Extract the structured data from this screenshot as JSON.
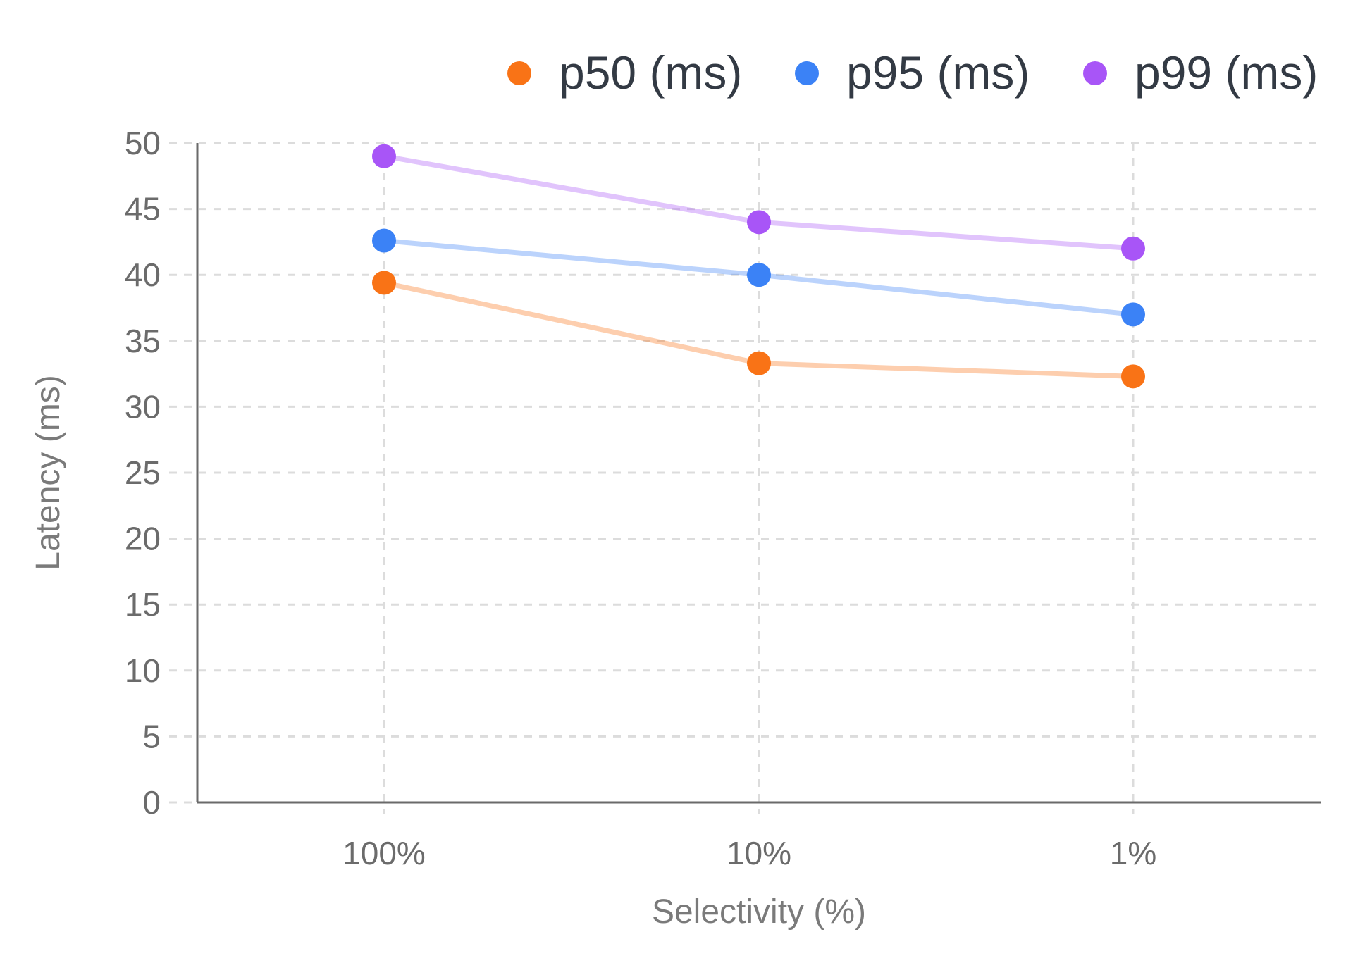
{
  "chart_data": {
    "type": "line",
    "title": "",
    "xlabel": "Selectivity (%)",
    "ylabel": "Latency (ms)",
    "categories": [
      "100%",
      "10%",
      "1%"
    ],
    "ylim": [
      0,
      50
    ],
    "yticks": [
      0,
      5,
      10,
      15,
      20,
      25,
      30,
      35,
      40,
      45,
      50
    ],
    "grid": true,
    "legend_position": "top-right",
    "series": [
      {
        "name": "p50 (ms)",
        "color": "#f97316",
        "values": [
          39.4,
          33.3,
          32.3
        ]
      },
      {
        "name": "p95 (ms)",
        "color": "#3b82f6",
        "values": [
          42.6,
          40.0,
          37.0
        ]
      },
      {
        "name": "p99 (ms)",
        "color": "#a855f7",
        "values": [
          49.0,
          44.0,
          42.0
        ]
      }
    ]
  }
}
